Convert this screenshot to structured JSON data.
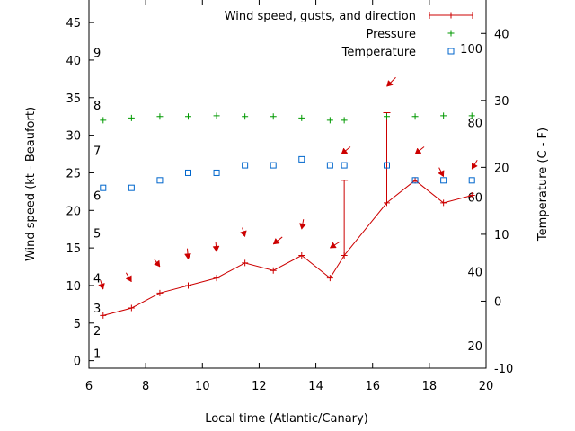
{
  "chart_data": {
    "type": "line",
    "xlabel": "Local time (Atlantic/Canary)",
    "ylabel": "Wind speed (kt - Beaufort)",
    "y2label": "Temperature (C - F)",
    "xlim": [
      6,
      20
    ],
    "ylim": [
      -1,
      48
    ],
    "y2lim": [
      -10,
      45
    ],
    "grid": false,
    "legend_position": "top-right",
    "x_ticks": [
      "6",
      "8",
      "10",
      "12",
      "14",
      "16",
      "18",
      "20"
    ],
    "y_ticks": [
      "0",
      "5",
      "10",
      "15",
      "20",
      "25",
      "30",
      "35",
      "40",
      "45"
    ],
    "y2_ticks": [
      "-10",
      "0",
      "10",
      "20",
      "30",
      "40"
    ],
    "beaufort_scale": [
      {
        "label": "1",
        "kt": 1
      },
      {
        "label": "2",
        "kt": 4
      },
      {
        "label": "3",
        "kt": 7
      },
      {
        "label": "4",
        "kt": 11
      },
      {
        "label": "5",
        "kt": 17
      },
      {
        "label": "6",
        "kt": 22
      },
      {
        "label": "7",
        "kt": 28
      },
      {
        "label": "8",
        "kt": 34
      },
      {
        "label": "9",
        "kt": 41
      }
    ],
    "fahrenheit_scale": [
      {
        "label": "20",
        "c": -6.67
      },
      {
        "label": "40",
        "c": 4.44
      },
      {
        "label": "60",
        "c": 15.56
      },
      {
        "label": "80",
        "c": 26.67
      },
      {
        "label": "100",
        "c": 37.78
      }
    ],
    "series": [
      {
        "name": "Wind speed, gusts, and direction",
        "color": "#cc0000",
        "x": [
          6.5,
          7.5,
          8.5,
          9.5,
          10.5,
          11.5,
          12.5,
          13.5,
          14.5,
          15.0,
          16.5,
          17.5,
          18.5,
          19.5
        ],
        "y": [
          6,
          7,
          9,
          10,
          11,
          13,
          12,
          14,
          11,
          14,
          21,
          24,
          21,
          22
        ],
        "gusts": [
          null,
          null,
          null,
          null,
          null,
          null,
          null,
          null,
          null,
          24,
          33,
          null,
          null,
          null
        ],
        "direction_arrows": [
          {
            "x": 6.5,
            "y": 9.5,
            "dx": 3,
            "dy": 10
          },
          {
            "x": 7.5,
            "y": 10.5,
            "dx": 6,
            "dy": 10
          },
          {
            "x": 8.5,
            "y": 12.5,
            "dx": 6,
            "dy": 8
          },
          {
            "x": 9.5,
            "y": 13.5,
            "dx": 1,
            "dy": 12
          },
          {
            "x": 10.5,
            "y": 14.5,
            "dx": 1,
            "dy": 11
          },
          {
            "x": 11.5,
            "y": 16.5,
            "dx": 3,
            "dy": 10
          },
          {
            "x": 12.5,
            "y": 15.5,
            "dx": -10,
            "dy": 8
          },
          {
            "x": 13.5,
            "y": 17.5,
            "dx": -2,
            "dy": 11
          },
          {
            "x": 14.5,
            "y": 15.0,
            "dx": -11,
            "dy": 7
          },
          {
            "x": 14.9,
            "y": 27.5,
            "dx": -10,
            "dy": 8
          },
          {
            "x": 16.5,
            "y": 36.5,
            "dx": -10,
            "dy": 10
          },
          {
            "x": 17.5,
            "y": 27.5,
            "dx": -10,
            "dy": 8
          },
          {
            "x": 18.5,
            "y": 24.5,
            "dx": 5,
            "dy": 10
          },
          {
            "x": 19.5,
            "y": 25.5,
            "dx": -6,
            "dy": 10
          }
        ]
      },
      {
        "name": "Pressure",
        "color": "#009900",
        "x": [
          6.5,
          7.5,
          8.5,
          9.5,
          10.5,
          11.5,
          12.5,
          13.5,
          14.5,
          15.0,
          16.5,
          17.5,
          18.5,
          19.5
        ],
        "y": [
          32,
          32.3,
          32.5,
          32.5,
          32.6,
          32.5,
          32.5,
          32.3,
          32,
          32,
          32.5,
          32.5,
          32.6,
          32.6
        ]
      },
      {
        "name": "Temperature",
        "color": "#0066cc",
        "x": [
          6.5,
          7.5,
          8.5,
          9.5,
          10.5,
          11.5,
          12.5,
          13.5,
          14.5,
          15.0,
          16.5,
          17.5,
          18.5,
          19.5
        ],
        "y": [
          23,
          23,
          24,
          25,
          25,
          26,
          26,
          26.8,
          26,
          26,
          26,
          24,
          24,
          24
        ]
      }
    ]
  }
}
